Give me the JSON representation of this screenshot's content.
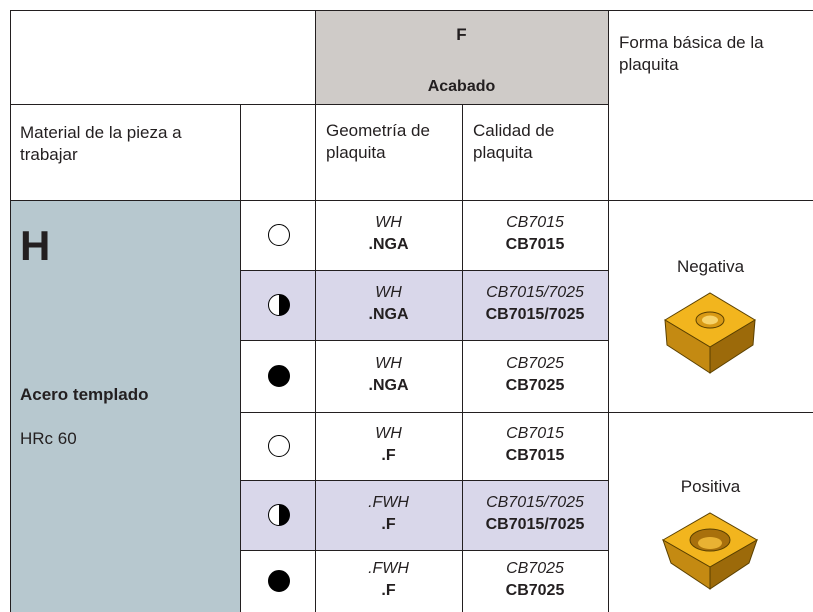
{
  "header": {
    "group_code": "F",
    "group_name": "Acabado",
    "shape_heading": "Forma básica de la plaquita",
    "material_heading": "Material de la pieza a trabajar",
    "geometry_heading": "Geometría de plaquita",
    "grade_heading": "Calidad de plaquita"
  },
  "material": {
    "code": "H",
    "name": "Acero templado",
    "hardness": "HRc 60"
  },
  "rows": [
    {
      "geometry": [
        "WH",
        ".NGA"
      ],
      "grade": [
        "CB7015",
        "CB7015"
      ]
    },
    {
      "geometry": [
        "WH",
        ".NGA"
      ],
      "grade": [
        "CB7015/7025",
        "CB7015/7025"
      ]
    },
    {
      "geometry": [
        "WH",
        ".NGA"
      ],
      "grade": [
        "CB7025",
        "CB7025"
      ]
    },
    {
      "geometry": [
        "WH",
        ".F"
      ],
      "grade": [
        "CB7015",
        "CB7015"
      ]
    },
    {
      "geometry": [
        ".FWH",
        ".F"
      ],
      "grade": [
        "CB7015/7025",
        "CB7015/7025"
      ]
    },
    {
      "geometry": [
        ".FWH",
        ".F"
      ],
      "grade": [
        "CB7025",
        "CB7025"
      ]
    }
  ],
  "shapes": [
    "Negativa",
    "Positiva"
  ]
}
